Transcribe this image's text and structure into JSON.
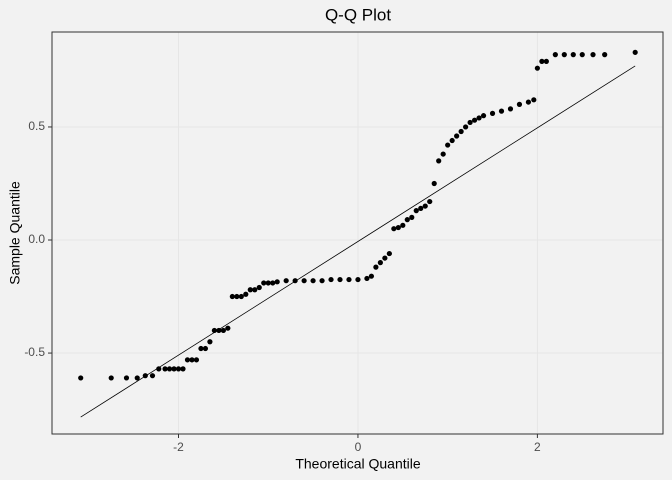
{
  "chart_data": {
    "type": "scatter",
    "title": "Q-Q Plot",
    "x_label": "Theoretical Quantile",
    "y_label": "Sample Quantile",
    "xlim": [
      -3.41,
      3.4
    ],
    "ylim": [
      -0.858,
      0.92
    ],
    "xticks": [
      -2,
      0,
      2
    ],
    "yticks": [
      -0.5,
      {
        "value": 0,
        "label": "0.0"
      },
      0.5
    ],
    "grid": true,
    "color": "#000000",
    "series": [
      {
        "x": [
          -3.09,
          -2.75,
          -2.58,
          -2.46,
          -2.37,
          -2.29,
          -2.22,
          -2.15,
          -2.1,
          -2.05,
          -2.0,
          -1.95,
          -1.9,
          -1.85,
          -1.8,
          -1.75,
          -1.7,
          -1.65,
          -1.6,
          -1.55,
          -1.5,
          -1.45,
          -1.4,
          -1.35,
          -1.3,
          -1.25,
          -1.2,
          -1.15,
          -1.1,
          -1.05,
          -1.0,
          -0.95,
          -0.9,
          -0.8,
          -0.7,
          -0.6,
          -0.5,
          -0.4,
          -0.3,
          -0.2,
          -0.1,
          0,
          0.1,
          0.15,
          0.2,
          0.25,
          0.3,
          0.35,
          0.4,
          0.45,
          0.5,
          0.55,
          0.6,
          0.65,
          0.7,
          0.75,
          0.8,
          0.85,
          0.9,
          0.95,
          1.0,
          1.05,
          1.1,
          1.15,
          1.2,
          1.25,
          1.3,
          1.35,
          1.4,
          1.5,
          1.6,
          1.7,
          1.8,
          1.9,
          1.96,
          2.0,
          2.05,
          2.1,
          2.2,
          2.3,
          2.4,
          2.5,
          2.62,
          2.75,
          3.09
        ],
        "values": [
          -0.61,
          -0.61,
          -0.61,
          -0.61,
          -0.6,
          -0.6,
          -0.57,
          -0.57,
          -0.57,
          -0.57,
          -0.57,
          -0.57,
          -0.53,
          -0.53,
          -0.53,
          -0.48,
          -0.48,
          -0.45,
          -0.4,
          -0.4,
          -0.4,
          -0.39,
          -0.25,
          -0.25,
          -0.25,
          -0.24,
          -0.22,
          -0.22,
          -0.21,
          -0.19,
          -0.19,
          -0.19,
          -0.185,
          -0.18,
          -0.18,
          -0.18,
          -0.18,
          -0.18,
          -0.175,
          -0.175,
          -0.175,
          -0.175,
          -0.17,
          -0.16,
          -0.12,
          -0.1,
          -0.08,
          -0.06,
          0.05,
          0.055,
          0.065,
          0.09,
          0.1,
          0.13,
          0.14,
          0.15,
          0.17,
          0.25,
          0.35,
          0.38,
          0.42,
          0.44,
          0.46,
          0.48,
          0.5,
          0.52,
          0.53,
          0.54,
          0.55,
          0.56,
          0.57,
          0.58,
          0.6,
          0.61,
          0.62,
          0.76,
          0.79,
          0.79,
          0.82,
          0.82,
          0.82,
          0.82,
          0.82,
          0.82,
          0.83
        ]
      }
    ],
    "ref_line": {
      "x": [
        -3.09,
        3.09
      ],
      "y": [
        -0.783,
        0.77
      ]
    }
  }
}
